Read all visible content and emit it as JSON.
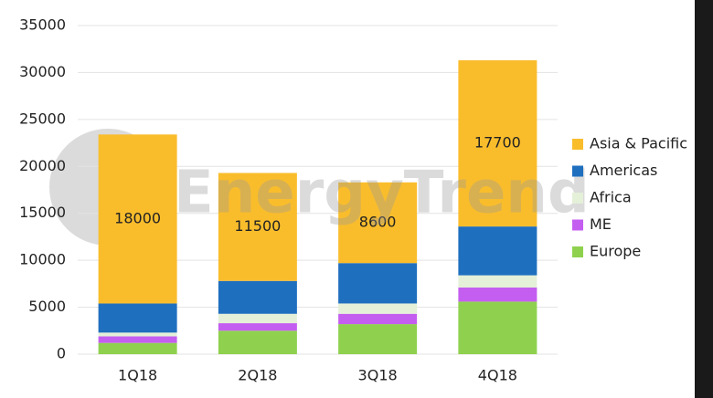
{
  "chart_data": {
    "type": "stacked_bar",
    "watermark": "EnergyTrend",
    "categories": [
      "1Q18",
      "2Q18",
      "3Q18",
      "4Q18"
    ],
    "series": [
      {
        "name": "Europe",
        "color": "#8fd14f",
        "values": [
          1200,
          2500,
          3200,
          5600
        ]
      },
      {
        "name": "ME",
        "color": "#c45ef0",
        "values": [
          700,
          800,
          1100,
          1500
        ]
      },
      {
        "name": "Africa",
        "color": "#e4f0d8",
        "values": [
          400,
          1000,
          1100,
          1300
        ]
      },
      {
        "name": "Americas",
        "color": "#1f6fbf",
        "values": [
          3100,
          3500,
          4300,
          5200
        ]
      },
      {
        "name": "Asia & Pacific",
        "color": "#f9bd2c",
        "values": [
          18000,
          11500,
          8600,
          17700
        ],
        "show_labels": true
      }
    ],
    "ylim": [
      0,
      35000
    ],
    "yticks": [
      0,
      5000,
      10000,
      15000,
      20000,
      25000,
      30000,
      35000
    ],
    "grid": true,
    "legend": "right"
  }
}
